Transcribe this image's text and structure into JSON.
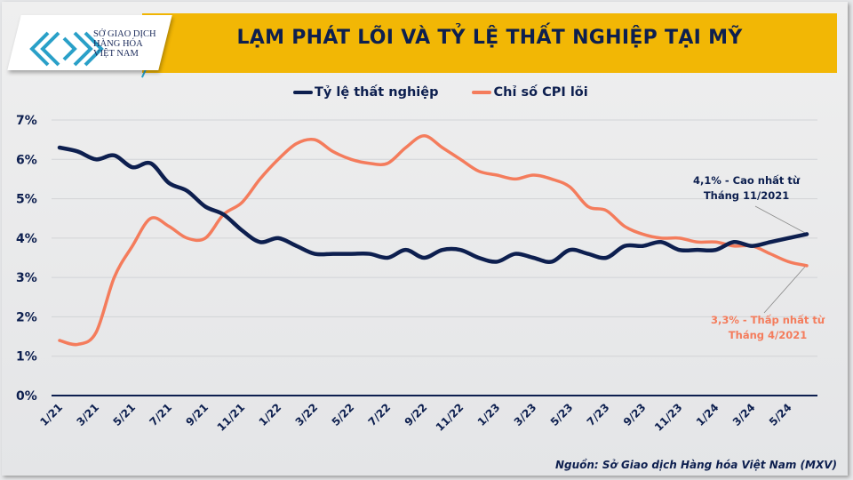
{
  "logo": {
    "line1": "SỞ GIAO DỊCH",
    "line2": "HÀNG HÓA",
    "line3": "VIỆT NAM"
  },
  "header": {
    "title": "LẠM PHÁT LÕI VÀ TỶ LỆ THẤT NGHIỆP TẠI MỸ"
  },
  "colors": {
    "unemployment": "#0d1f4f",
    "cpi": "#f47c5c",
    "banner": "#f2b705"
  },
  "source": "Nguồn: Sở Giao dịch Hàng hóa Việt Nam (MXV)",
  "annotations": {
    "unemployment_l1": "4,1% - Cao nhất từ",
    "unemployment_l2": "Tháng 11/2021",
    "cpi_l1": "3,3% - Thấp nhất từ",
    "cpi_l2": "Tháng 4/2021"
  },
  "chart_data": {
    "type": "line",
    "title": "LẠM PHÁT LÕI VÀ TỶ LỆ THẤT NGHIỆP TẠI MỸ",
    "ylim": [
      0,
      7
    ],
    "yticks": [
      "0%",
      "1%",
      "2%",
      "3%",
      "4%",
      "5%",
      "6%",
      "7%"
    ],
    "grid": true,
    "legend": "top",
    "x": [
      "1/21",
      "2/21",
      "3/21",
      "4/21",
      "5/21",
      "6/21",
      "7/21",
      "8/21",
      "9/21",
      "10/21",
      "11/21",
      "12/21",
      "1/22",
      "2/22",
      "3/22",
      "4/22",
      "5/22",
      "6/22",
      "7/22",
      "8/22",
      "9/22",
      "10/22",
      "11/22",
      "12/22",
      "1/23",
      "2/23",
      "3/23",
      "4/23",
      "5/23",
      "6/23",
      "7/23",
      "8/23",
      "9/23",
      "10/23",
      "11/23",
      "12/23",
      "1/24",
      "2/24",
      "3/24",
      "4/24",
      "5/24",
      "6/24"
    ],
    "xtick_labels": [
      "1/21",
      "3/21",
      "5/21",
      "7/21",
      "9/21",
      "11/21",
      "1/22",
      "3/22",
      "5/22",
      "7/22",
      "9/22",
      "11/22",
      "1/23",
      "3/23",
      "5/23",
      "7/23",
      "9/23",
      "11/23",
      "1/24",
      "3/24",
      "5/24"
    ],
    "series": [
      {
        "name": "Tỷ lệ thất nghiệp",
        "values": [
          6.3,
          6.2,
          6.0,
          6.1,
          5.8,
          5.9,
          5.4,
          5.2,
          4.8,
          4.6,
          4.2,
          3.9,
          4.0,
          3.8,
          3.6,
          3.6,
          3.6,
          3.6,
          3.5,
          3.7,
          3.5,
          3.7,
          3.7,
          3.5,
          3.4,
          3.6,
          3.5,
          3.4,
          3.7,
          3.6,
          3.5,
          3.8,
          3.8,
          3.9,
          3.7,
          3.7,
          3.7,
          3.9,
          3.8,
          3.9,
          4.0,
          4.1
        ]
      },
      {
        "name": "Chỉ số CPI lõi",
        "values": [
          1.4,
          1.3,
          1.6,
          3.0,
          3.8,
          4.5,
          4.3,
          4.0,
          4.0,
          4.6,
          4.9,
          5.5,
          6.0,
          6.4,
          6.5,
          6.2,
          6.0,
          5.9,
          5.9,
          6.3,
          6.6,
          6.3,
          6.0,
          5.7,
          5.6,
          5.5,
          5.6,
          5.5,
          5.3,
          4.8,
          4.7,
          4.3,
          4.1,
          4.0,
          4.0,
          3.9,
          3.9,
          3.8,
          3.8,
          3.6,
          3.4,
          3.3
        ]
      }
    ]
  }
}
